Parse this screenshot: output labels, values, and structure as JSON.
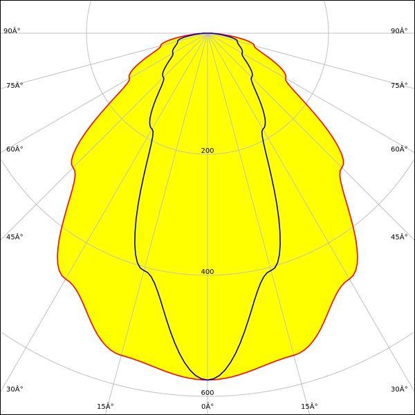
{
  "chart_data": {
    "type": "polar-line",
    "angle_labels": [
      "0Â°",
      "15Â°",
      "30Â°",
      "45Â°",
      "60Â°",
      "75Â°",
      "90Â°"
    ],
    "radial_ticks": [
      200,
      400,
      600
    ],
    "radial_tick_labels": [
      "200",
      "400",
      "600"
    ],
    "angles": [
      0,
      15,
      30,
      45,
      60,
      75,
      90
    ],
    "series": [
      {
        "color": "#ff0000",
        "fill": "#ffff00",
        "values": [
          573,
          551,
          469,
          314,
          149,
          80,
          8
        ]
      },
      {
        "color": "#0000cc",
        "values": [
          573,
          406,
          183,
          103,
          66,
          51,
          6
        ]
      }
    ],
    "grid": true,
    "symmetric": true
  }
}
